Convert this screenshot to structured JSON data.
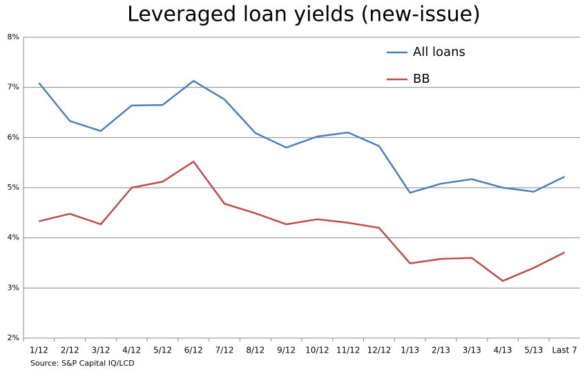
{
  "chart_data": {
    "type": "line",
    "title": "Leveraged loan yields (new-issue)",
    "source": "Source: S&P Capital IQ/LCD",
    "categories": [
      "1/12",
      "2/12",
      "3/12",
      "4/12",
      "5/12",
      "6/12",
      "7/12",
      "8/12",
      "9/12",
      "10/12",
      "11/12",
      "12/12",
      "1/13",
      "2/13",
      "3/13",
      "4/13",
      "5/13",
      "Last 7"
    ],
    "series": [
      {
        "name": "All loans",
        "color": "#4a7ebb",
        "values": [
          7.09,
          6.33,
          6.13,
          6.64,
          6.65,
          7.13,
          6.76,
          6.09,
          5.8,
          6.02,
          6.1,
          5.83,
          4.9,
          5.08,
          5.17,
          5.0,
          4.92,
          5.22
        ]
      },
      {
        "name": "BB",
        "color": "#be4b48",
        "values": [
          4.33,
          4.48,
          4.27,
          5.0,
          5.12,
          5.52,
          4.68,
          4.49,
          4.27,
          4.37,
          4.3,
          4.2,
          3.49,
          3.58,
          3.6,
          3.14,
          3.4,
          3.71
        ]
      }
    ],
    "ylim": [
      2,
      8
    ],
    "yticks": [
      {
        "value": 2,
        "label": "2%"
      },
      {
        "value": 3,
        "label": "3%"
      },
      {
        "value": 4,
        "label": "4%"
      },
      {
        "value": 5,
        "label": "5%"
      },
      {
        "value": 6,
        "label": "6%"
      },
      {
        "value": 7,
        "label": "7%"
      },
      {
        "value": 8,
        "label": "8%"
      }
    ],
    "grid": true,
    "legend": "top-right"
  }
}
